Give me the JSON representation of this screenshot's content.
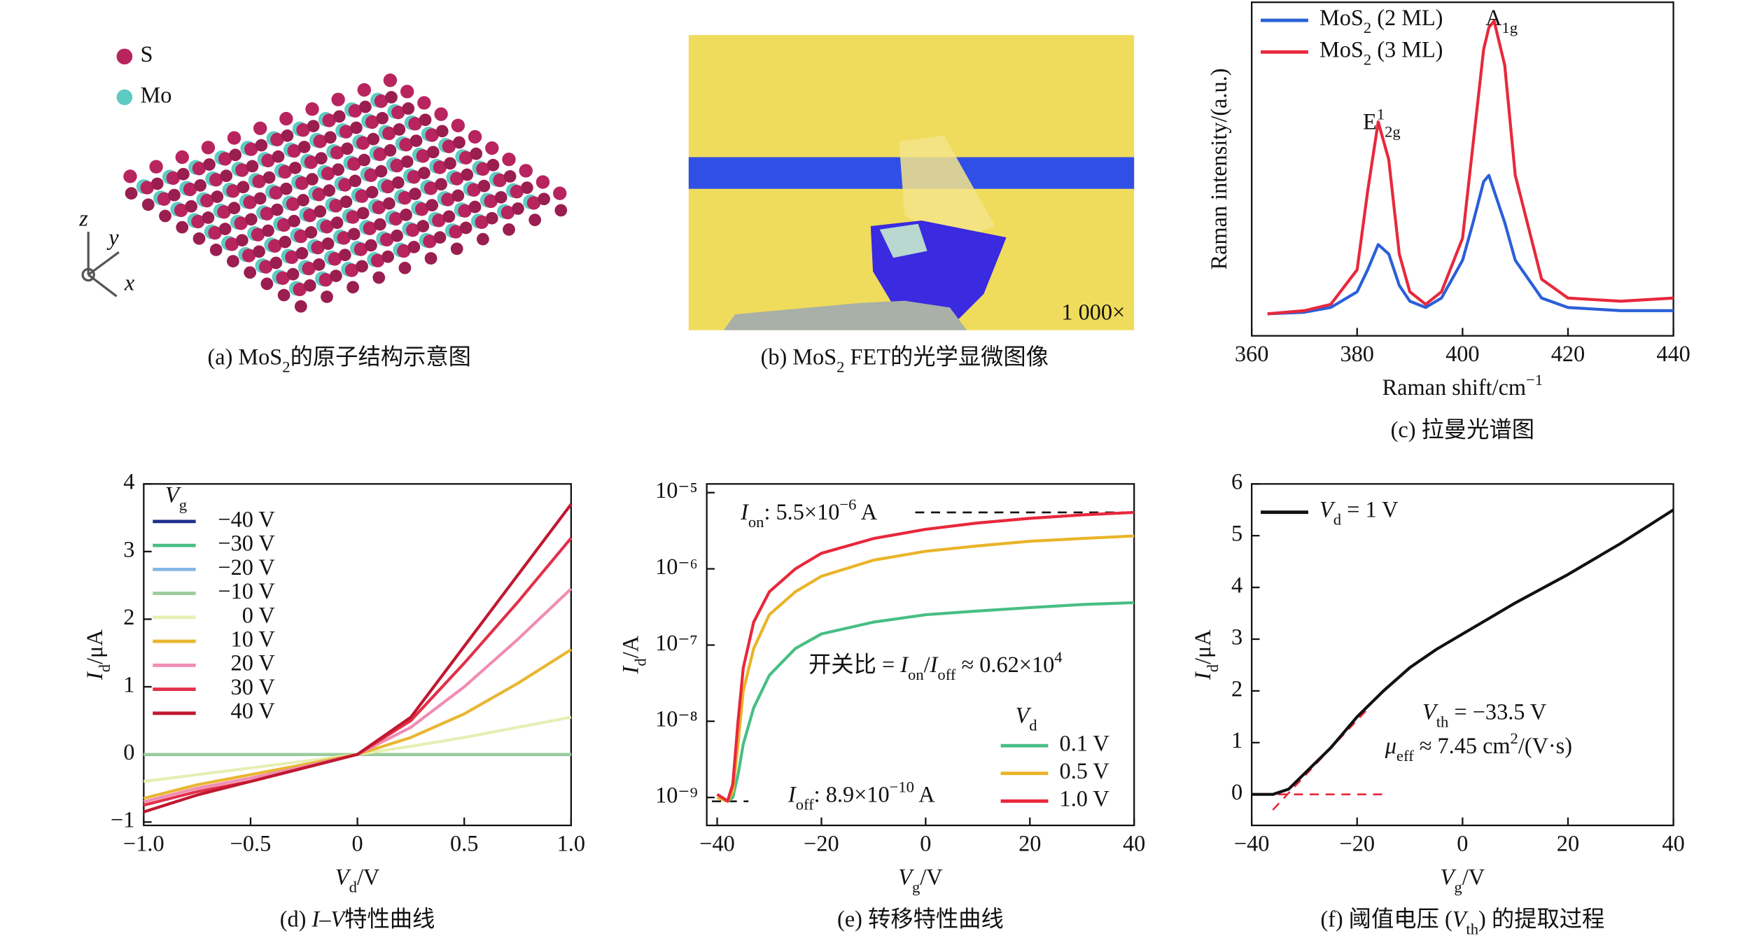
{
  "panel_a": {
    "legend": [
      "S",
      "Mo"
    ],
    "axes": [
      "z",
      "y",
      "x"
    ],
    "caption": [
      {
        "t": "(a) MoS"
      },
      {
        "t": "2",
        "s": "sub"
      },
      {
        "t": "的原子结构示意图"
      }
    ]
  },
  "panel_b": {
    "scale": "1 000×",
    "caption": [
      {
        "t": "(b) MoS"
      },
      {
        "t": "2",
        "s": "sub"
      },
      {
        "t": " FET的光学显微图像"
      }
    ]
  },
  "chart_data": [
    {
      "type": "line",
      "caption": "(c) 拉曼光谱图",
      "xlabel": [
        {
          "t": "Raman shift/cm"
        },
        {
          "t": "−1",
          "s": "sup"
        }
      ],
      "ylabel": "Raman intensity/(a.u.)",
      "x": [
        363,
        370,
        375,
        380,
        382,
        384,
        386,
        388,
        390,
        393,
        396,
        400,
        402,
        404,
        405,
        406,
        408,
        410,
        415,
        420,
        430,
        440
      ],
      "series": [
        {
          "name": [
            {
              "t": "MoS"
            },
            {
              "t": "2",
              "s": "sub"
            },
            {
              "t": " (2 ML)"
            }
          ],
          "color": "#2a5fd8",
          "values": [
            1,
            1.5,
            3,
            8,
            15,
            23,
            20,
            10,
            5,
            3,
            6,
            18,
            30,
            43,
            45,
            40,
            30,
            18,
            6,
            3,
            2,
            2
          ]
        },
        {
          "name": [
            {
              "t": "MoS"
            },
            {
              "t": "2",
              "s": "sub"
            },
            {
              "t": " (3 ML)"
            }
          ],
          "color": "#e8283c",
          "values": [
            1,
            2,
            4,
            15,
            40,
            62,
            50,
            20,
            8,
            4,
            8,
            25,
            55,
            85,
            92,
            94,
            80,
            45,
            12,
            6,
            5,
            6
          ]
        }
      ],
      "annotations": [
        [
          {
            "t": "E"
          },
          {
            "t": "1",
            "s": "sup"
          },
          {
            "t": "2g",
            "s": "sub"
          }
        ],
        [
          {
            "t": "A"
          },
          {
            "t": "1g",
            "s": "sub"
          }
        ]
      ],
      "xlim": [
        360,
        440
      ],
      "xticks": [
        360,
        380,
        400,
        420,
        440
      ],
      "ylim": [
        -6,
        100
      ]
    },
    {
      "type": "line",
      "caption": [
        {
          "t": "(d) "
        },
        {
          "t": "I",
          "s": "i"
        },
        {
          "t": "–"
        },
        {
          "t": "V",
          "s": "i"
        },
        {
          "t": "特性曲线"
        }
      ],
      "xlabel": [
        {
          "t": "V",
          "s": "i"
        },
        {
          "t": "d",
          "s": "sub"
        },
        {
          "t": "/V"
        }
      ],
      "ylabel": [
        {
          "t": "I",
          "s": "i"
        },
        {
          "t": "d",
          "s": "sub"
        },
        {
          "t": "/μA"
        }
      ],
      "legend_title": [
        {
          "t": "V",
          "s": "i"
        },
        {
          "t": "g",
          "s": "sub"
        }
      ],
      "x": [
        -1,
        -0.75,
        -0.5,
        -0.25,
        0,
        0.25,
        0.5,
        0.75,
        1
      ],
      "series": [
        {
          "name": "−40 V",
          "color": "#1c2e8c",
          "values": [
            0,
            0,
            0,
            0,
            0,
            0,
            0,
            0,
            0
          ]
        },
        {
          "name": "−30 V",
          "color": "#48be84",
          "values": [
            0,
            0,
            0,
            0,
            0,
            0,
            0,
            0,
            0
          ]
        },
        {
          "name": "−20 V",
          "color": "#86b6e6",
          "values": [
            0,
            0,
            0,
            0,
            0,
            0,
            0,
            0,
            0
          ]
        },
        {
          "name": "−10 V",
          "color": "#9ccc9c",
          "values": [
            0,
            0,
            0,
            0,
            0,
            0,
            0,
            0,
            0
          ]
        },
        {
          "name": "0 V",
          "color": "#e6efb4",
          "values": [
            -0.4,
            -0.3,
            -0.2,
            -0.1,
            0,
            0.12,
            0.25,
            0.4,
            0.55
          ]
        },
        {
          "name": "10 V",
          "color": "#e8b630",
          "values": [
            -0.65,
            -0.45,
            -0.3,
            -0.15,
            0,
            0.25,
            0.6,
            1.05,
            1.55
          ]
        },
        {
          "name": "20 V",
          "color": "#f08cb4",
          "values": [
            -0.7,
            -0.5,
            -0.35,
            -0.18,
            0,
            0.4,
            1,
            1.7,
            2.45
          ]
        },
        {
          "name": "30 V",
          "color": "#e2304a",
          "values": [
            -0.75,
            -0.55,
            -0.4,
            -0.2,
            0,
            0.5,
            1.35,
            2.25,
            3.2
          ]
        },
        {
          "name": "40 V",
          "color": "#c01830",
          "values": [
            -0.85,
            -0.6,
            -0.4,
            -0.2,
            0,
            0.55,
            1.6,
            2.65,
            3.7
          ]
        }
      ],
      "xlim": [
        -1,
        1
      ],
      "xticks": [
        {
          "value": -1,
          "label": "−1.0"
        },
        {
          "value": -0.5,
          "label": "−0.5"
        },
        0,
        {
          "value": 0.5,
          "label": "0.5"
        },
        {
          "value": 1,
          "label": "1.0"
        }
      ],
      "ylim": [
        -1.05,
        4
      ],
      "yticks": [
        {
          "value": -1,
          "label": "−1"
        },
        0,
        1,
        2,
        3,
        4
      ]
    },
    {
      "type": "line",
      "log": true,
      "caption": "(e) 转移特性曲线",
      "xlabel": [
        {
          "t": "V",
          "s": "i"
        },
        {
          "t": "g",
          "s": "sub"
        },
        {
          "t": "/V"
        }
      ],
      "ylabel": [
        {
          "t": "I",
          "s": "i"
        },
        {
          "t": "d",
          "s": "sub"
        },
        {
          "t": "/A"
        }
      ],
      "legend_title": [
        {
          "t": "V",
          "s": "i"
        },
        {
          "t": "d",
          "s": "sub"
        }
      ],
      "x": [
        -40,
        -38,
        -37,
        -36,
        -35,
        -33,
        -30,
        -25,
        -20,
        -10,
        0,
        10,
        20,
        30,
        40
      ],
      "series": [
        {
          "name": "0.1 V",
          "color": "#48be84",
          "values": [
            1e-09,
            8.9e-10,
            1e-09,
            2e-09,
            5e-09,
            1.5e-08,
            4e-08,
            9e-08,
            1.4e-07,
            2e-07,
            2.5e-07,
            2.8e-07,
            3.1e-07,
            3.4e-07,
            3.6e-07
          ]
        },
        {
          "name": "0.5 V",
          "color": "#eab428",
          "values": [
            1e-09,
            8.9e-10,
            1.2e-09,
            5e-09,
            2.5e-08,
            9e-08,
            2.5e-07,
            5e-07,
            8e-07,
            1.3e-06,
            1.7e-06,
            2e-06,
            2.3e-06,
            2.5e-06,
            2.7e-06
          ]
        },
        {
          "name": "1.0 V",
          "color": "#e8283c",
          "values": [
            1.1e-09,
            9e-10,
            1.5e-09,
            1e-08,
            5e-08,
            2e-07,
            5e-07,
            1e-06,
            1.6e-06,
            2.5e-06,
            3.3e-06,
            4e-06,
            4.6e-06,
            5.1e-06,
            5.5e-06
          ]
        }
      ],
      "ref_lines": [
        {
          "x": [
            -2,
            40
          ],
          "y": [
            5.5e-06,
            5.5e-06
          ]
        },
        {
          "x": [
            -41,
            -34
          ],
          "y": [
            8.9e-10,
            8.9e-10
          ]
        }
      ],
      "annotations": [
        [
          {
            "t": "I",
            "s": "i"
          },
          {
            "t": "on",
            "s": "sub"
          },
          {
            "t": ": 5.5×10"
          },
          {
            "t": "−6",
            "s": "sup"
          },
          {
            "t": " A"
          }
        ],
        [
          {
            "t": "I",
            "s": "i"
          },
          {
            "t": "off",
            "s": "sub"
          },
          {
            "t": ": 8.9×10"
          },
          {
            "t": "−10",
            "s": "sup"
          },
          {
            "t": " A"
          }
        ],
        [
          {
            "t": "开关比 = "
          },
          {
            "t": "I",
            "s": "i"
          },
          {
            "t": "on",
            "s": "sub"
          },
          {
            "t": "/"
          },
          {
            "t": "I",
            "s": "i"
          },
          {
            "t": "off",
            "s": "sub"
          },
          {
            "t": " ≈ 0.62×10"
          },
          {
            "t": "4",
            "s": "sup"
          }
        ]
      ],
      "xlim": [
        -42,
        40
      ],
      "xticks": [
        {
          "value": -40,
          "label": "−40"
        },
        {
          "value": -20,
          "label": "−20"
        },
        0,
        20,
        40
      ],
      "ylim": [
        4.3e-10,
        1.3e-05
      ],
      "yticks": [
        {
          "value": 1e-09,
          "label": "10⁻⁹"
        },
        {
          "value": 1e-08,
          "label": "10⁻⁸"
        },
        {
          "value": 1e-07,
          "label": "10⁻⁷"
        },
        {
          "value": 1e-06,
          "label": "10⁻⁶"
        },
        {
          "value": 1e-05,
          "label": "10⁻⁵"
        }
      ]
    },
    {
      "type": "line",
      "caption": [
        {
          "t": "(f) 阈值电压 ("
        },
        {
          "t": "V",
          "s": "i"
        },
        {
          "t": "th",
          "s": "sub"
        },
        {
          "t": ") 的提取过程"
        }
      ],
      "xlabel": [
        {
          "t": "V",
          "s": "i"
        },
        {
          "t": "g",
          "s": "sub"
        },
        {
          "t": "/V"
        }
      ],
      "ylabel": [
        {
          "t": "I",
          "s": "i"
        },
        {
          "t": "d",
          "s": "sub"
        },
        {
          "t": "/μA"
        }
      ],
      "x": [
        -40,
        -36,
        -33,
        -30,
        -25,
        -20,
        -15,
        -10,
        -5,
        0,
        5,
        10,
        20,
        30,
        40
      ],
      "series": [
        {
          "name": [
            {
              "t": "V",
              "s": "i"
            },
            {
              "t": "d",
              "s": "sub"
            },
            {
              "t": " = 1 V"
            }
          ],
          "color": "#111111",
          "values": [
            0,
            0,
            0.1,
            0.4,
            0.9,
            1.5,
            2,
            2.45,
            2.8,
            3.1,
            3.4,
            3.7,
            4.25,
            4.85,
            5.5
          ]
        }
      ],
      "ref_lines": [
        {
          "x": [
            -36,
            -18
          ],
          "y": [
            -0.3,
            1.65
          ]
        },
        {
          "x": [
            -38,
            -14
          ],
          "y": [
            0,
            0
          ]
        }
      ],
      "annotations": [
        [
          {
            "t": "V",
            "s": "i"
          },
          {
            "t": "th",
            "s": "sub"
          },
          {
            "t": " = −33.5 V"
          }
        ],
        [
          {
            "t": "μ",
            "s": "i"
          },
          {
            "t": "eff",
            "s": "sub"
          },
          {
            "t": " ≈ 7.45 cm"
          },
          {
            "t": "2",
            "s": "sup"
          },
          {
            "t": "/(V·s)"
          }
        ]
      ],
      "xlim": [
        -40,
        40
      ],
      "xticks": [
        {
          "value": -40,
          "label": "−40"
        },
        {
          "value": -20,
          "label": "−20"
        },
        0,
        20,
        40
      ],
      "ylim": [
        -0.6,
        6
      ],
      "yticks": [
        0,
        1,
        2,
        3,
        4,
        5,
        6
      ]
    }
  ]
}
